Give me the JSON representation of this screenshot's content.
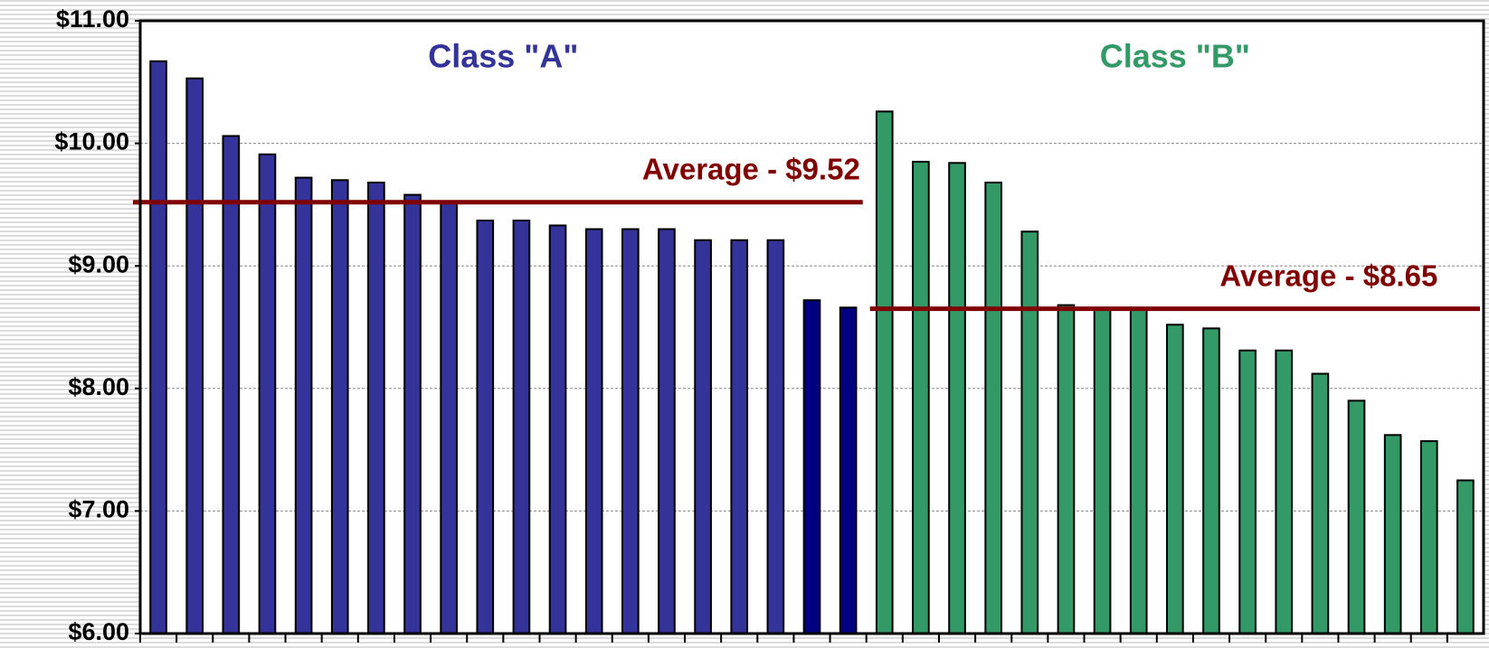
{
  "chart_data": {
    "type": "bar",
    "categories": [
      null,
      null,
      null,
      null,
      null,
      null,
      null,
      null,
      null,
      null,
      null,
      null,
      null,
      null,
      null,
      null,
      null,
      null,
      null,
      null,
      null,
      null,
      null,
      null,
      null,
      null,
      null,
      null,
      null,
      null,
      null,
      null,
      null,
      null,
      null,
      null,
      null
    ],
    "series": [
      {
        "name": "Class \"A\"",
        "color": "#333399",
        "colors": [
          "#333399",
          "#333399",
          "#333399",
          "#333399",
          "#333399",
          "#333399",
          "#333399",
          "#333399",
          "#333399",
          "#333399",
          "#333399",
          "#333399",
          "#333399",
          "#333399",
          "#333399",
          "#333399",
          "#333399",
          "#333399",
          "#000080",
          "#000080",
          null,
          null,
          null,
          null,
          null,
          null,
          null,
          null,
          null,
          null,
          null,
          null,
          null,
          null,
          null,
          null,
          null
        ],
        "values": [
          10.67,
          10.53,
          10.06,
          9.91,
          9.72,
          9.7,
          9.68,
          9.58,
          9.51,
          9.37,
          9.37,
          9.33,
          9.3,
          9.3,
          9.3,
          9.21,
          9.21,
          9.21,
          8.72,
          8.66,
          null,
          null,
          null,
          null,
          null,
          null,
          null,
          null,
          null,
          null,
          null,
          null,
          null,
          null,
          null,
          null,
          null
        ]
      },
      {
        "name": "Class \"B\"",
        "color": "#339966",
        "values": [
          null,
          null,
          null,
          null,
          null,
          null,
          null,
          null,
          null,
          null,
          null,
          null,
          null,
          null,
          null,
          null,
          null,
          null,
          null,
          null,
          10.26,
          9.85,
          9.84,
          9.68,
          9.28,
          8.68,
          8.65,
          8.65,
          8.52,
          8.49,
          8.31,
          8.31,
          8.12,
          7.9,
          7.62,
          7.57,
          7.25
        ]
      }
    ],
    "averages": [
      {
        "label": "Average - $9.52",
        "value": 9.52,
        "series": 0,
        "color": "#800000"
      },
      {
        "label": "Average - $8.65",
        "value": 8.65,
        "series": 1,
        "color": "#800000"
      }
    ],
    "ylim": [
      6,
      11
    ],
    "yticks": [
      {
        "value": 6,
        "label": "$6.00"
      },
      {
        "value": 7,
        "label": "$7.00"
      },
      {
        "value": 8,
        "label": "$8.00"
      },
      {
        "value": 9,
        "label": "$9.00"
      },
      {
        "value": 10,
        "label": "$10.00"
      },
      {
        "value": 11,
        "label": "$11.00"
      }
    ],
    "grid": true
  }
}
